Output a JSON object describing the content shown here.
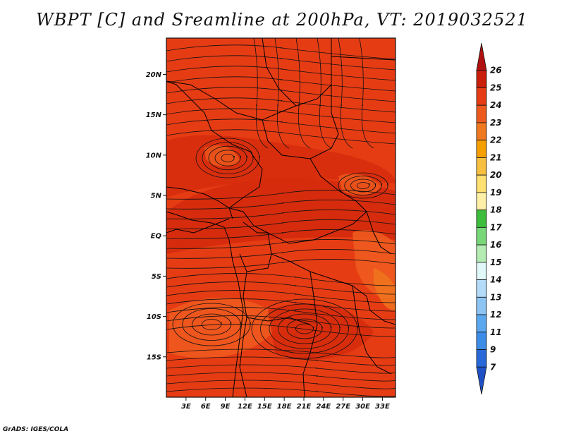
{
  "title": "WBPT [C] and Sreamline at 200hPa, VT: 2019032521",
  "credit": "GrADS: IGES/COLA",
  "map": {
    "lat_labels": [
      "20N",
      "15N",
      "10N",
      "5N",
      "EQ",
      "5S",
      "10S",
      "15S"
    ],
    "lat_values": [
      20,
      15,
      10,
      5,
      0,
      -5,
      -10,
      -15
    ],
    "lon_labels": [
      "3E",
      "6E",
      "9E",
      "12E",
      "15E",
      "18E",
      "21E",
      "24E",
      "27E",
      "30E",
      "33E"
    ],
    "lon_values": [
      3,
      6,
      9,
      12,
      15,
      18,
      21,
      24,
      27,
      30,
      33
    ],
    "lon_range": [
      0,
      35
    ],
    "lat_range": [
      -20,
      24.5
    ],
    "field_colors": {
      "main": "#e63c14",
      "dark": "#d42a0c",
      "light": "#ee5a1e",
      "orange": "#f0781e"
    }
  },
  "colorbar": {
    "levels": [
      "26",
      "25",
      "24",
      "23",
      "22",
      "21",
      "20",
      "19",
      "18",
      "17",
      "16",
      "15",
      "14",
      "13",
      "12",
      "11",
      "9",
      "7"
    ],
    "colors": [
      "#b01010",
      "#c81e0a",
      "#e63c14",
      "#ee5a1e",
      "#f0781e",
      "#f5a000",
      "#f8c040",
      "#fde070",
      "#fff0a8",
      "#3cbe3c",
      "#78d878",
      "#b4ecb4",
      "#e0f8f8",
      "#b4dcf8",
      "#8cc4f4",
      "#5ca8f0",
      "#3c8ce8",
      "#2868d8",
      "#2050c8"
    ]
  }
}
